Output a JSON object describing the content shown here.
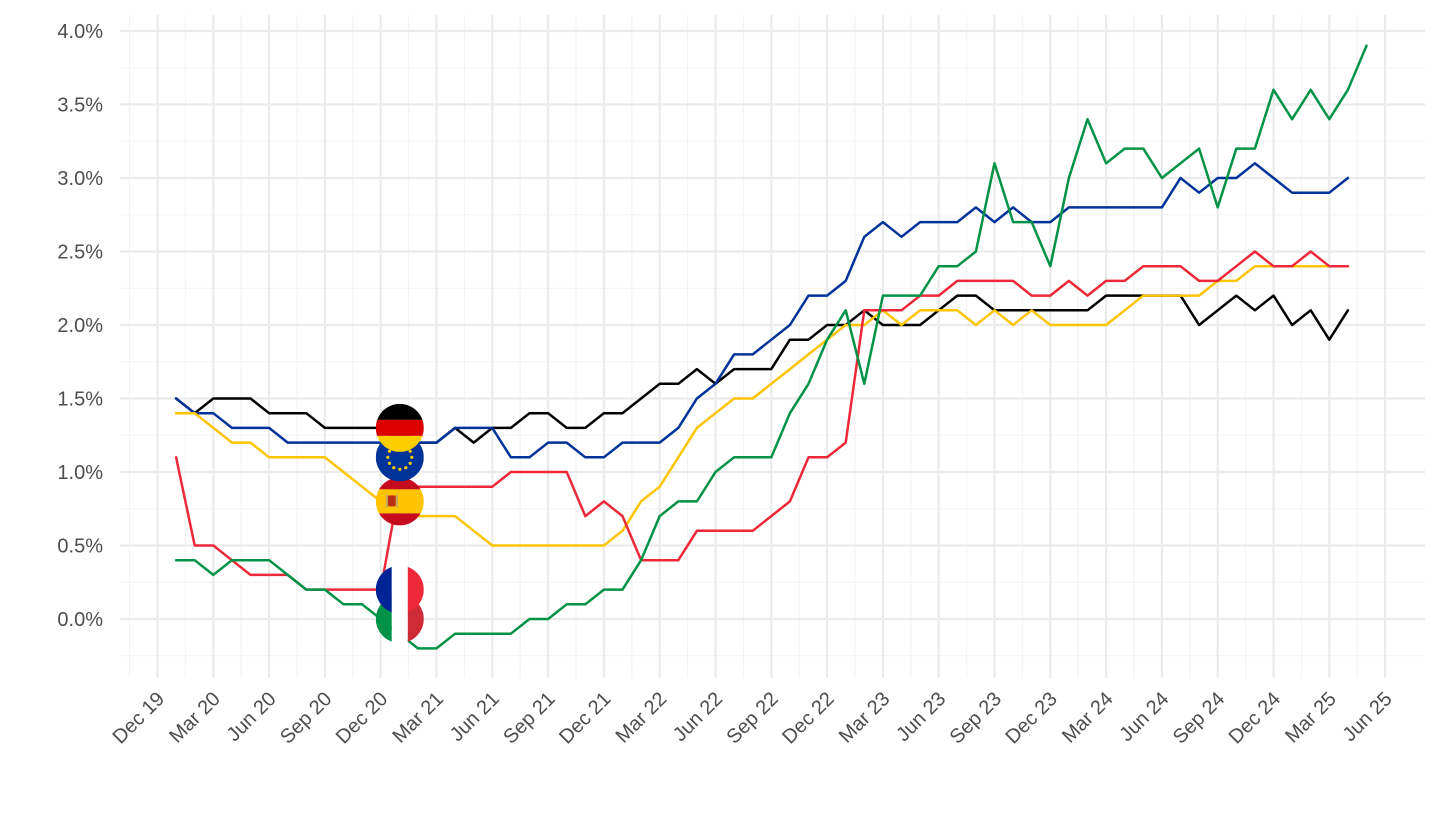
{
  "chart_data": {
    "type": "line",
    "title": "",
    "xlabel": "",
    "ylabel": "",
    "grid": true,
    "legend": "flag icons at line starts",
    "ylim": [
      -0.3,
      4.1
    ],
    "y_ticks": [
      0.0,
      0.5,
      1.0,
      1.5,
      2.0,
      2.5,
      3.0,
      3.5,
      4.0
    ],
    "y_tick_labels": [
      "0.0%",
      "0.5%",
      "1.0%",
      "1.5%",
      "2.0%",
      "2.5%",
      "3.0%",
      "3.5%",
      "4.0%"
    ],
    "x_ticks": [
      "2019-12",
      "2020-03",
      "2020-06",
      "2020-09",
      "2020-12",
      "2021-03",
      "2021-06",
      "2021-09",
      "2021-12",
      "2022-03",
      "2022-06",
      "2022-09",
      "2022-12",
      "2023-03",
      "2023-06",
      "2023-09",
      "2023-12",
      "2024-03",
      "2024-06",
      "2024-09",
      "2024-12",
      "2025-03",
      "2025-06"
    ],
    "x_tick_labels": [
      "Dec 19",
      "Mar 20",
      "Jun 20",
      "Sep 20",
      "Dec 20",
      "Mar 21",
      "Jun 21",
      "Sep 21",
      "Dec 21",
      "Mar 22",
      "Jun 22",
      "Sep 22",
      "Dec 22",
      "Mar 23",
      "Jun 23",
      "Sep 23",
      "Dec 23",
      "Mar 24",
      "Jun 24",
      "Sep 24",
      "Dec 24",
      "Mar 25",
      "Jun 25"
    ],
    "x": [
      "2020-01",
      "2020-02",
      "2020-03",
      "2020-04",
      "2020-05",
      "2020-06",
      "2020-07",
      "2020-08",
      "2020-09",
      "2020-10",
      "2020-11",
      "2020-12",
      "2021-01",
      "2021-02",
      "2021-03",
      "2021-04",
      "2021-05",
      "2021-06",
      "2021-07",
      "2021-08",
      "2021-09",
      "2021-10",
      "2021-11",
      "2021-12",
      "2022-01",
      "2022-02",
      "2022-03",
      "2022-04",
      "2022-05",
      "2022-06",
      "2022-07",
      "2022-08",
      "2022-09",
      "2022-10",
      "2022-11",
      "2022-12",
      "2023-01",
      "2023-02",
      "2023-03",
      "2023-04",
      "2023-05",
      "2023-06",
      "2023-07",
      "2023-08",
      "2023-09",
      "2023-10",
      "2023-11",
      "2023-12",
      "2024-01",
      "2024-02",
      "2024-03",
      "2024-04",
      "2024-05",
      "2024-06",
      "2024-07",
      "2024-08",
      "2024-09",
      "2024-10",
      "2024-11",
      "2024-12",
      "2025-01",
      "2025-02",
      "2025-03",
      "2025-04",
      "2025-05"
    ],
    "series": [
      {
        "flag": "germany",
        "color": "#000000",
        "values": [
          1.5,
          1.4,
          1.5,
          1.5,
          1.5,
          1.4,
          1.4,
          1.4,
          1.3,
          1.3,
          1.3,
          1.3,
          1.3,
          1.2,
          1.2,
          1.3,
          1.2,
          1.3,
          1.3,
          1.4,
          1.4,
          1.3,
          1.3,
          1.4,
          1.4,
          1.5,
          1.6,
          1.6,
          1.7,
          1.6,
          1.7,
          1.7,
          1.7,
          1.9,
          1.9,
          2.0,
          2.0,
          2.1,
          2.0,
          2.0,
          2.0,
          2.1,
          2.2,
          2.2,
          2.1,
          2.1,
          2.1,
          2.1,
          2.1,
          2.1,
          2.2,
          2.2,
          2.2,
          2.2,
          2.2,
          2.0,
          2.1,
          2.2,
          2.1,
          2.2,
          2.0,
          2.1,
          1.9,
          2.1,
          null
        ]
      },
      {
        "flag": "euro-area",
        "color": "#003399",
        "values": [
          1.5,
          1.4,
          1.4,
          1.3,
          1.3,
          1.3,
          1.2,
          1.2,
          1.2,
          1.2,
          1.2,
          1.2,
          1.2,
          1.2,
          1.2,
          1.3,
          1.3,
          1.3,
          1.1,
          1.1,
          1.2,
          1.2,
          1.1,
          1.1,
          1.2,
          1.2,
          1.2,
          1.3,
          1.5,
          1.6,
          1.8,
          1.8,
          1.9,
          2.0,
          2.2,
          2.2,
          2.3,
          2.6,
          2.7,
          2.6,
          2.7,
          2.7,
          2.7,
          2.8,
          2.7,
          2.8,
          2.7,
          2.7,
          2.8,
          2.8,
          2.8,
          2.8,
          2.8,
          2.8,
          3.0,
          2.9,
          3.0,
          3.0,
          3.1,
          3.0,
          2.9,
          2.9,
          2.9,
          3.0,
          null
        ]
      },
      {
        "flag": "spain",
        "color": "#ffc400",
        "values": [
          1.4,
          1.4,
          1.3,
          1.2,
          1.2,
          1.1,
          1.1,
          1.1,
          1.1,
          1.0,
          0.9,
          0.8,
          0.7,
          0.7,
          0.7,
          0.7,
          0.6,
          0.5,
          0.5,
          0.5,
          0.5,
          0.5,
          0.5,
          0.5,
          0.6,
          0.8,
          0.9,
          1.1,
          1.3,
          1.4,
          1.5,
          1.5,
          1.6,
          1.7,
          1.8,
          1.9,
          2.0,
          2.0,
          2.1,
          2.0,
          2.1,
          2.1,
          2.1,
          2.0,
          2.1,
          2.0,
          2.1,
          2.0,
          2.0,
          2.0,
          2.0,
          2.1,
          2.2,
          2.2,
          2.2,
          2.2,
          2.3,
          2.3,
          2.4,
          2.4,
          2.4,
          2.4,
          2.4,
          2.4,
          null
        ]
      },
      {
        "flag": "france",
        "color": "#ed2939",
        "values": [
          1.1,
          0.5,
          0.5,
          0.4,
          0.3,
          0.3,
          0.3,
          0.2,
          0.2,
          0.2,
          0.2,
          0.2,
          0.9,
          0.9,
          0.9,
          0.9,
          0.9,
          0.9,
          1.0,
          1.0,
          1.0,
          1.0,
          0.7,
          0.8,
          0.7,
          0.4,
          0.4,
          0.4,
          0.6,
          0.6,
          0.6,
          0.6,
          0.7,
          0.8,
          1.1,
          1.1,
          1.2,
          2.1,
          2.1,
          2.1,
          2.2,
          2.2,
          2.3,
          2.3,
          2.3,
          2.3,
          2.2,
          2.2,
          2.3,
          2.2,
          2.3,
          2.3,
          2.4,
          2.4,
          2.4,
          2.3,
          2.3,
          2.4,
          2.5,
          2.4,
          2.4,
          2.5,
          2.4,
          2.4,
          null
        ]
      },
      {
        "flag": "italy",
        "color": "#009246",
        "values": [
          0.4,
          0.4,
          0.3,
          0.4,
          0.4,
          0.4,
          0.3,
          0.2,
          0.2,
          0.1,
          0.1,
          0.0,
          -0.1,
          -0.2,
          -0.2,
          -0.1,
          -0.1,
          -0.1,
          -0.1,
          0.0,
          0.0,
          0.1,
          0.1,
          0.2,
          0.2,
          0.4,
          0.7,
          0.8,
          0.8,
          1.0,
          1.1,
          1.1,
          1.1,
          1.4,
          1.6,
          1.9,
          2.1,
          1.6,
          2.2,
          2.2,
          2.2,
          2.4,
          2.4,
          2.5,
          3.1,
          2.7,
          2.7,
          2.4,
          3.0,
          3.4,
          3.1,
          3.2,
          3.2,
          3.0,
          3.1,
          3.2,
          2.8,
          3.2,
          3.2,
          3.6,
          3.4,
          3.6,
          3.4,
          3.6,
          3.9
        ]
      }
    ],
    "flag_markers": [
      {
        "flag": "germany",
        "date": "2021-01",
        "value": 1.3
      },
      {
        "flag": "euro-area",
        "date": "2021-01",
        "value": 1.1
      },
      {
        "flag": "spain",
        "date": "2021-01",
        "value": 0.8
      },
      {
        "flag": "france",
        "date": "2021-01",
        "value": 0.2
      },
      {
        "flag": "italy",
        "date": "2021-01",
        "value": 0.0
      }
    ]
  }
}
